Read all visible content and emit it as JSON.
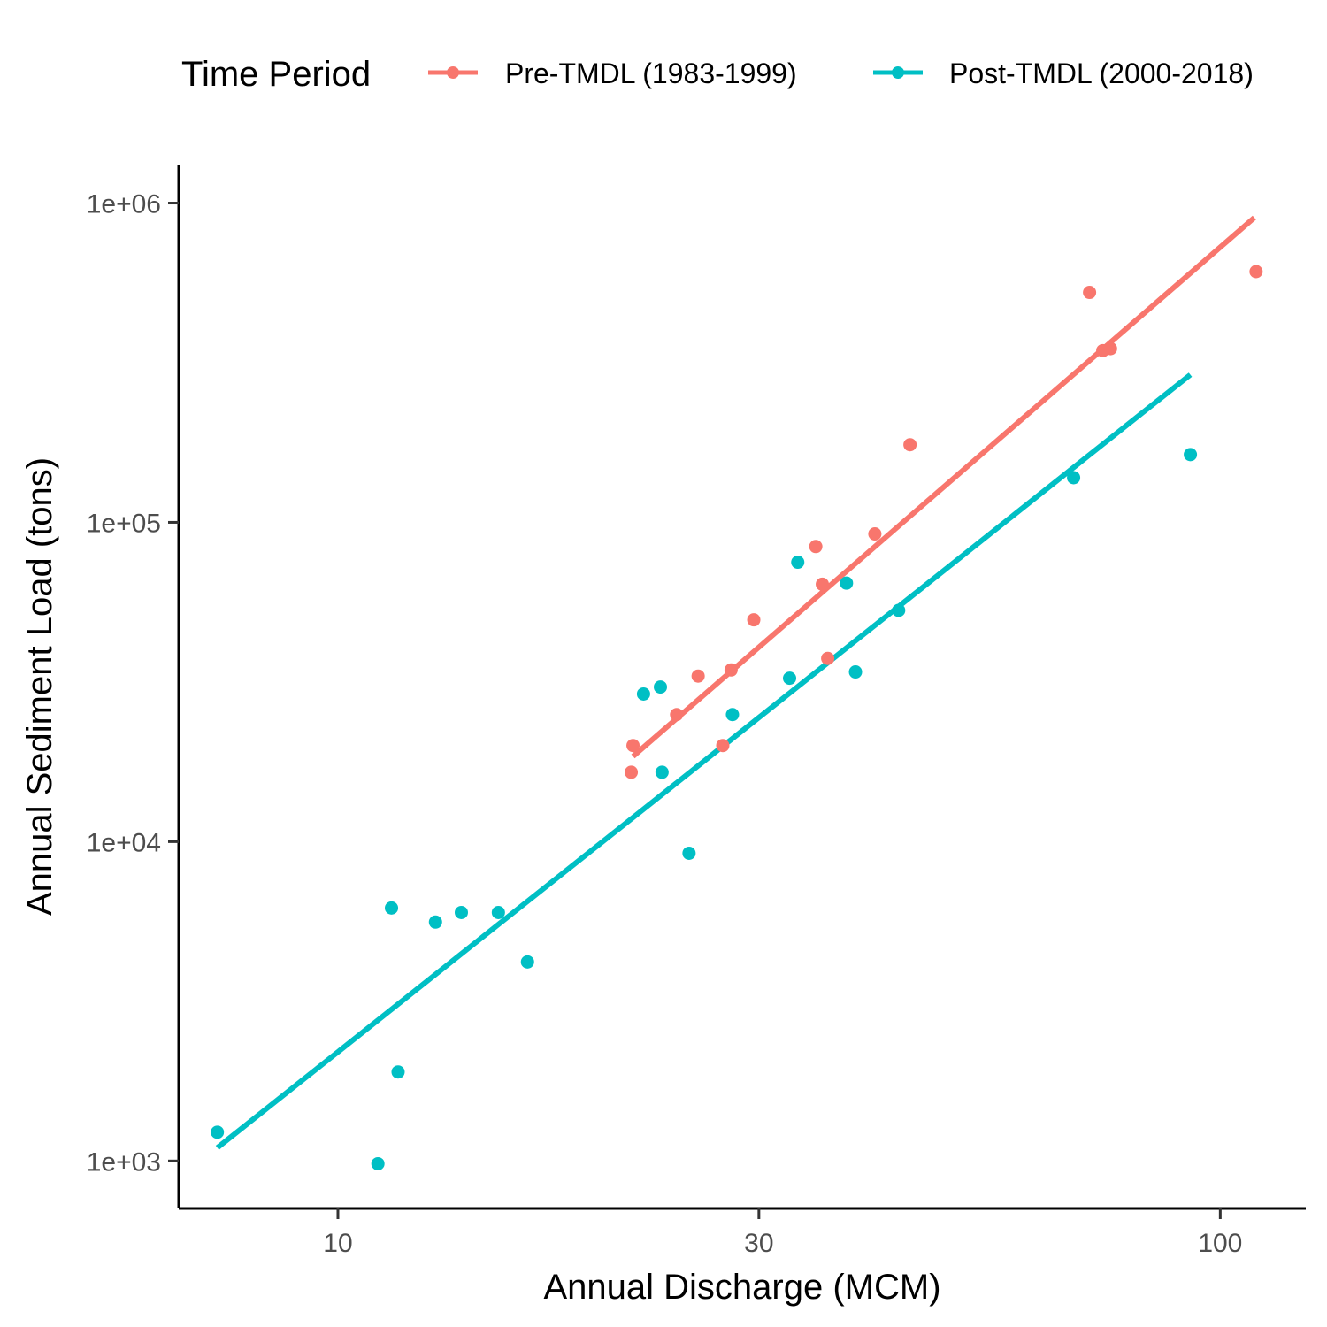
{
  "legend": {
    "title": "Time Period",
    "position": "top"
  },
  "chart_data": {
    "type": "scatter",
    "xlabel": "Annual Discharge (MCM)",
    "ylabel": "Annual Sediment Load (tons)",
    "x_scale": "log10",
    "y_scale": "log10",
    "xlim": [
      6.6,
      125
    ],
    "ylim": [
      710,
      1320000
    ],
    "x_ticks": [
      {
        "value": 10,
        "label": "10"
      },
      {
        "value": 30,
        "label": "30"
      },
      {
        "value": 100,
        "label": "100"
      }
    ],
    "y_ticks": [
      {
        "value": 1000,
        "label": "1e+03"
      },
      {
        "value": 10000,
        "label": "1e+04"
      },
      {
        "value": 100000,
        "label": "1e+05"
      },
      {
        "value": 1000000,
        "label": "1e+06"
      }
    ],
    "grid": false,
    "series": [
      {
        "name": "Pre-TMDL (1983-1999)",
        "color": "#F8766D",
        "points": [
          [
            21.6,
            20000
          ],
          [
            21.5,
            16500
          ],
          [
            24.2,
            25000
          ],
          [
            25.6,
            33000
          ],
          [
            27.9,
            34500
          ],
          [
            27.3,
            20000
          ],
          [
            29.6,
            49500
          ],
          [
            34.8,
            84000
          ],
          [
            35.4,
            64000
          ],
          [
            35.9,
            37500
          ],
          [
            40.6,
            92000
          ],
          [
            44.5,
            175000
          ],
          [
            71.1,
            525000
          ],
          [
            73.6,
            345000
          ],
          [
            75.1,
            350000
          ],
          [
            109.8,
            610000
          ]
        ],
        "fit_line": [
          [
            21.6,
            18500
          ],
          [
            109.3,
            900000
          ]
        ]
      },
      {
        "name": "Post-TMDL (2000-2018)",
        "color": "#00BFC4",
        "points": [
          [
            7.3,
            1230
          ],
          [
            11.1,
            980
          ],
          [
            11.5,
            6200
          ],
          [
            11.7,
            1900
          ],
          [
            12.9,
            5600
          ],
          [
            13.8,
            6000
          ],
          [
            15.2,
            6000
          ],
          [
            16.4,
            4200
          ],
          [
            22.2,
            29000
          ],
          [
            23.2,
            30500
          ],
          [
            23.3,
            16500
          ],
          [
            25.0,
            9200
          ],
          [
            28.0,
            25000
          ],
          [
            32.5,
            32500
          ],
          [
            33.2,
            75000
          ],
          [
            37.7,
            64500
          ],
          [
            38.6,
            34000
          ],
          [
            43.2,
            53000
          ],
          [
            68.2,
            138000
          ],
          [
            92.5,
            163000
          ]
        ],
        "fit_line": [
          [
            7.3,
            1100
          ],
          [
            92.5,
            290000
          ]
        ]
      }
    ]
  }
}
